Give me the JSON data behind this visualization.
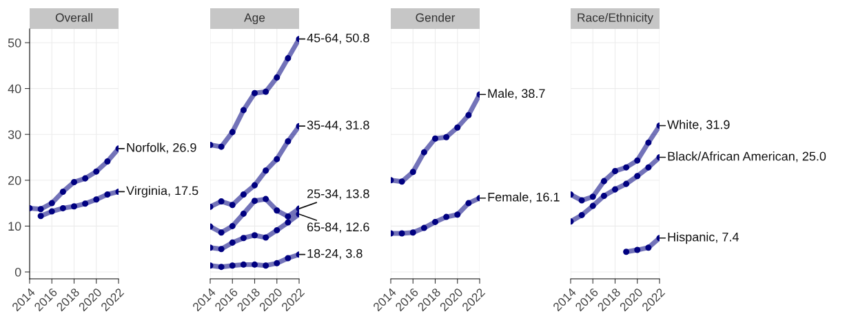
{
  "chart_data": [
    {
      "type": "line",
      "title": "Overall",
      "x": [
        2014,
        2015,
        2016,
        2017,
        2018,
        2019,
        2020,
        2021,
        2022
      ],
      "xlim": [
        2014,
        2022
      ],
      "xticks": [
        2014,
        2016,
        2018,
        2020,
        2022
      ],
      "ylim": [
        -1.5,
        53
      ],
      "yticks": [
        0,
        10,
        20,
        30,
        40,
        50
      ],
      "grid": true,
      "marker": "circle",
      "legend": false,
      "series": [
        {
          "color": "#000080",
          "values": [
            13.9,
            13.7,
            15.0,
            17.5,
            19.6,
            20.4,
            21.9,
            24.1,
            26.9
          ]
        },
        {
          "color": "#000080",
          "values": [
            null,
            12.2,
            13.2,
            13.9,
            14.3,
            14.9,
            15.8,
            16.9,
            17.5
          ]
        }
      ],
      "annotations": [
        "Norfolk, 26.9",
        "Virginia, 17.5"
      ]
    },
    {
      "type": "line",
      "title": "Age",
      "x": [
        2014,
        2015,
        2016,
        2017,
        2018,
        2019,
        2020,
        2021,
        2022
      ],
      "xlim": [
        2014,
        2022
      ],
      "xticks": [
        2014,
        2016,
        2018,
        2020,
        2022
      ],
      "ylim": [
        -1.5,
        53
      ],
      "yticks": [
        0,
        10,
        20,
        30,
        40,
        50
      ],
      "grid": true,
      "marker": "circle",
      "legend": false,
      "tick_labels": "x",
      "series": [
        {
          "color": "#000080",
          "values": [
            27.7,
            27.3,
            30.5,
            35.3,
            39.0,
            39.3,
            42.4,
            46.6,
            50.8
          ]
        },
        {
          "color": "#000080",
          "values": [
            14.2,
            15.4,
            14.6,
            16.9,
            18.9,
            22.1,
            24.6,
            28.5,
            31.8
          ]
        },
        {
          "color": "#000080",
          "values": [
            9.9,
            8.6,
            10.0,
            12.7,
            15.5,
            15.9,
            13.4,
            12.1,
            13.8
          ]
        },
        {
          "color": "#000080",
          "values": [
            5.3,
            5.0,
            6.4,
            7.4,
            8.0,
            7.5,
            9.1,
            10.8,
            12.6
          ]
        },
        {
          "color": "#000080",
          "values": [
            1.4,
            1.1,
            1.4,
            1.6,
            1.6,
            1.4,
            1.9,
            3.0,
            3.8
          ]
        }
      ],
      "annotations": [
        "45-64, 50.8",
        "35-44, 31.8",
        "25-34, 13.8",
        "65-84, 12.6",
        "18-24, 3.8"
      ]
    },
    {
      "type": "line",
      "title": "Gender",
      "x": [
        2014,
        2015,
        2016,
        2017,
        2018,
        2019,
        2020,
        2021,
        2022
      ],
      "xlim": [
        2014,
        2022
      ],
      "xticks": [
        2014,
        2016,
        2018,
        2020,
        2022
      ],
      "ylim": [
        -1.5,
        53
      ],
      "yticks": [
        0,
        10,
        20,
        30,
        40,
        50
      ],
      "grid": true,
      "marker": "circle",
      "legend": false,
      "tick_labels": "x",
      "series": [
        {
          "color": "#000080",
          "values": [
            20.0,
            19.7,
            21.8,
            26.1,
            29.1,
            29.4,
            31.5,
            34.2,
            38.7
          ]
        },
        {
          "color": "#000080",
          "values": [
            8.4,
            8.4,
            8.6,
            9.6,
            10.9,
            12.0,
            12.5,
            15.0,
            16.1
          ]
        }
      ],
      "annotations": [
        "Male, 38.7",
        "Female, 16.1"
      ]
    },
    {
      "type": "line",
      "title": "Race/Ethnicity",
      "x": [
        2014,
        2015,
        2016,
        2017,
        2018,
        2019,
        2020,
        2021,
        2022
      ],
      "xlim": [
        2014,
        2022
      ],
      "xticks": [
        2014,
        2016,
        2018,
        2020,
        2022
      ],
      "ylim": [
        -1.5,
        53
      ],
      "yticks": [
        0,
        10,
        20,
        30,
        40,
        50
      ],
      "grid": true,
      "marker": "circle",
      "legend": false,
      "tick_labels": "x",
      "series": [
        {
          "color": "#000080",
          "values": [
            16.9,
            15.6,
            16.4,
            19.8,
            22.0,
            22.8,
            24.3,
            28.2,
            31.9
          ]
        },
        {
          "color": "#000080",
          "values": [
            11.0,
            12.4,
            14.4,
            16.6,
            18.0,
            19.2,
            20.9,
            22.8,
            25.0
          ]
        },
        {
          "color": "#000080",
          "values": [
            null,
            null,
            null,
            null,
            null,
            4.4,
            4.8,
            5.3,
            7.4
          ]
        }
      ],
      "annotations": [
        "White, 31.9",
        "Black/African American, 25.0",
        "Hispanic, 7.4"
      ]
    }
  ]
}
